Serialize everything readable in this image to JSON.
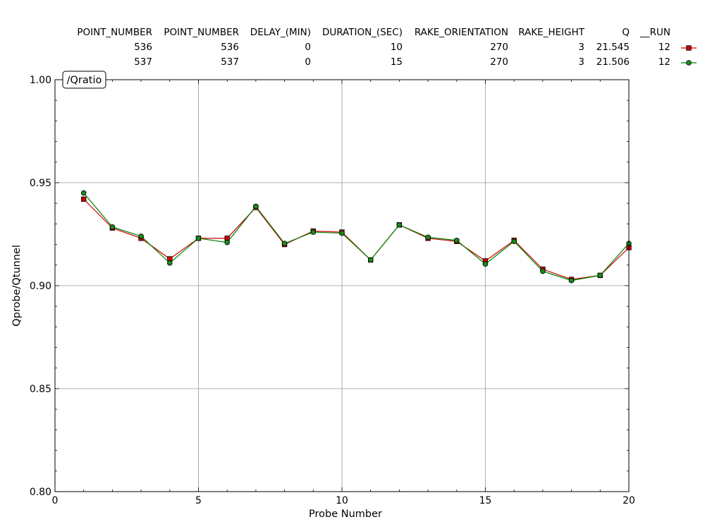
{
  "header_table": {
    "columns": [
      "POINT_NUMBER",
      "POINT_NUMBER",
      "DELAY_(MIN)",
      "DURATION_(SEC)",
      "RAKE_ORIENTATION",
      "RAKE_HEIGHT",
      "Q",
      "__RUN"
    ],
    "rows": [
      [
        "536",
        "536",
        "0",
        "10",
        "270",
        "3",
        "21.545",
        "12"
      ],
      [
        "537",
        "537",
        "0",
        "15",
        "270",
        "3",
        "21.506",
        "12"
      ]
    ]
  },
  "chart_data": {
    "type": "line",
    "title": "/Qratio",
    "xlabel": "Probe Number",
    "ylabel": "Qprobe/Qtunnel",
    "xlim": [
      0,
      20
    ],
    "ylim": [
      0.8,
      1.0
    ],
    "xticks": [
      "0",
      "5",
      "10",
      "15",
      "20"
    ],
    "yticks": [
      "0.80",
      "0.85",
      "0.90",
      "0.95",
      "1.00"
    ],
    "grid": true,
    "x": [
      1,
      2,
      3,
      4,
      5,
      6,
      7,
      8,
      9,
      10,
      11,
      12,
      13,
      14,
      15,
      16,
      17,
      18,
      19,
      20
    ],
    "series": [
      {
        "values": [
          0.942,
          0.928,
          0.923,
          0.913,
          0.923,
          0.923,
          0.938,
          0.92,
          0.9265,
          0.926,
          0.9125,
          0.9295,
          0.923,
          0.9215,
          0.912,
          0.922,
          0.908,
          0.903,
          0.905,
          0.9185
        ],
        "color": "#cc0000",
        "marker_fill": "#cc0000",
        "marker": "square"
      },
      {
        "values": [
          0.945,
          0.9285,
          0.924,
          0.911,
          0.923,
          0.921,
          0.9385,
          0.9205,
          0.926,
          0.9255,
          0.9125,
          0.9295,
          0.9235,
          0.922,
          0.9105,
          0.9215,
          0.907,
          0.9025,
          0.905,
          0.9205
        ],
        "color": "#008000",
        "marker_fill": "#1a8a1a",
        "marker": "circle"
      }
    ]
  }
}
